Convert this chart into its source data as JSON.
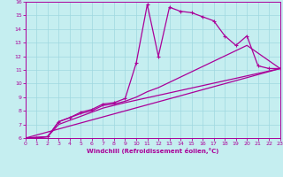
{
  "xlabel": "Windchill (Refroidissement éolien,°C)",
  "xlim": [
    0,
    23
  ],
  "ylim": [
    6,
    16
  ],
  "xticks": [
    0,
    1,
    2,
    3,
    4,
    5,
    6,
    7,
    8,
    9,
    10,
    11,
    12,
    13,
    14,
    15,
    16,
    17,
    18,
    19,
    20,
    21,
    22,
    23
  ],
  "yticks": [
    6,
    7,
    8,
    9,
    10,
    11,
    12,
    13,
    14,
    15,
    16
  ],
  "bg_color": "#c5eef0",
  "grid_color": "#9fd8e0",
  "line_color": "#aa0099",
  "line1_x": [
    0,
    1,
    2,
    3,
    4,
    5,
    6,
    7,
    8,
    9,
    10,
    11,
    12,
    13,
    14,
    15,
    16,
    17,
    18,
    19,
    20,
    21,
    22,
    23
  ],
  "line1_y": [
    6,
    6,
    6.1,
    7.2,
    7.5,
    7.9,
    8.1,
    8.5,
    8.6,
    8.9,
    11.5,
    15.8,
    12.0,
    15.6,
    15.3,
    15.2,
    14.9,
    14.6,
    13.5,
    12.8,
    13.5,
    11.3,
    11.1,
    11.1
  ],
  "line2_x": [
    0,
    2,
    3,
    4,
    5,
    6,
    7,
    8,
    9,
    10,
    11,
    12,
    20,
    23
  ],
  "line2_y": [
    6,
    6.1,
    7.2,
    7.5,
    7.8,
    8.0,
    8.4,
    8.5,
    8.7,
    9.0,
    9.4,
    9.7,
    12.8,
    11.1
  ],
  "line3_x": [
    0,
    2,
    3,
    4,
    5,
    6,
    7,
    8,
    9,
    23
  ],
  "line3_y": [
    6,
    6.1,
    7.0,
    7.3,
    7.6,
    7.9,
    8.2,
    8.4,
    8.6,
    11.1
  ],
  "line4_x": [
    0,
    23
  ],
  "line4_y": [
    6,
    11.1
  ]
}
